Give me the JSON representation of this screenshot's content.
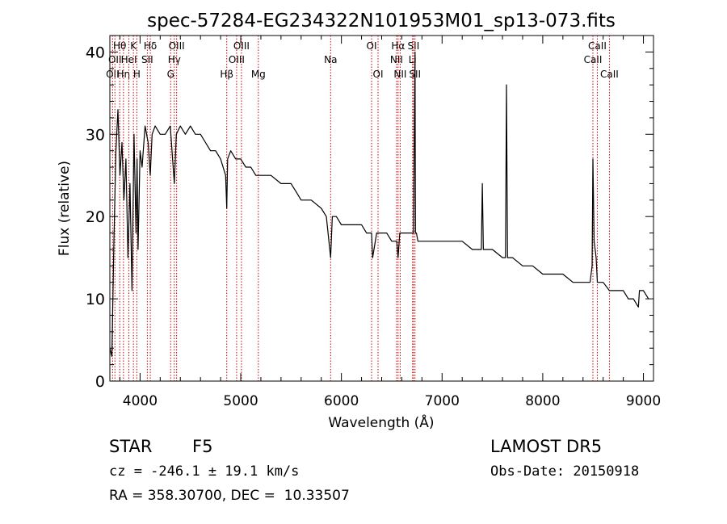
{
  "chart_data": {
    "type": "line",
    "title": "spec-57284-EG234322N101953M01_sp13-073.fits",
    "xlabel": "Wavelength (Å)",
    "ylabel": "Flux (relative)",
    "xlim": [
      3700,
      9100
    ],
    "ylim": [
      0,
      42
    ],
    "xticks": [
      4000,
      5000,
      6000,
      7000,
      8000,
      9000
    ],
    "yticks": [
      0,
      10,
      20,
      30,
      40
    ],
    "grid": false,
    "line_color": "#000000",
    "marker_color": "#cc0000",
    "series": [
      {
        "x": [
          3700,
          3720,
          3740,
          3760,
          3780,
          3800,
          3820,
          3840,
          3860,
          3880,
          3900,
          3920,
          3940,
          3960,
          3970,
          3980,
          4000,
          4020,
          4050,
          4080,
          4101,
          4120,
          4150,
          4200,
          4250,
          4300,
          4340,
          4360,
          4400,
          4450,
          4500,
          4550,
          4600,
          4650,
          4700,
          4750,
          4800,
          4850,
          4861,
          4870,
          4900,
          4950,
          5000,
          5050,
          5100,
          5150,
          5200,
          5300,
          5400,
          5500,
          5550,
          5600,
          5700,
          5800,
          5850,
          5893,
          5910,
          5950,
          6000,
          6100,
          6200,
          6250,
          6300,
          6310,
          6350,
          6400,
          6450,
          6500,
          6550,
          6563,
          6580,
          6600,
          6650,
          6700,
          6716,
          6731,
          6735,
          6745,
          6760,
          6800,
          6900,
          7000,
          7100,
          7200,
          7300,
          7390,
          7400,
          7410,
          7500,
          7600,
          7630,
          7640,
          7650,
          7700,
          7800,
          7900,
          8000,
          8100,
          8200,
          8300,
          8400,
          8470,
          8490,
          8498,
          8510,
          8530,
          8542,
          8560,
          8600,
          8662,
          8700,
          8800,
          8850,
          8900,
          8950,
          8960,
          9000,
          9050
        ],
        "y": [
          4,
          3,
          17,
          28,
          33,
          25,
          29,
          22,
          27,
          15,
          24,
          11,
          30,
          18,
          27,
          16,
          28,
          26,
          31,
          29,
          25,
          30,
          31,
          30,
          30,
          31,
          24,
          30,
          31,
          30,
          31,
          30,
          30,
          29,
          28,
          28,
          27,
          25,
          21,
          27,
          28,
          27,
          27,
          26,
          26,
          25,
          25,
          25,
          24,
          24,
          23,
          22,
          22,
          21,
          20,
          15,
          20,
          20,
          19,
          19,
          19,
          18,
          18,
          15,
          18,
          18,
          18,
          17,
          17,
          15,
          18,
          18,
          18,
          18,
          18,
          40,
          18,
          18,
          17,
          17,
          17,
          17,
          17,
          17,
          16,
          16,
          24,
          16,
          16,
          15,
          15,
          36,
          15,
          15,
          14,
          14,
          13,
          13,
          13,
          12,
          12,
          12,
          14,
          27,
          17,
          15,
          12,
          12,
          12,
          11,
          11,
          11,
          10,
          10,
          9,
          11,
          11,
          10
        ]
      }
    ],
    "lines": [
      {
        "wl": 3727,
        "top": "",
        "mid": "",
        "bot": "OII"
      },
      {
        "wl": 3750,
        "top": "",
        "mid": "OII",
        "bot": ""
      },
      {
        "wl": 3798,
        "top": "Hθ",
        "mid": "",
        "bot": ""
      },
      {
        "wl": 3835,
        "top": "",
        "mid": "",
        "bot": "Hη"
      },
      {
        "wl": 3889,
        "top": "",
        "mid": "HeI",
        "bot": ""
      },
      {
        "wl": 3934,
        "top": "K",
        "mid": "",
        "bot": ""
      },
      {
        "wl": 3968,
        "top": "",
        "mid": "",
        "bot": "H"
      },
      {
        "wl": 4072,
        "top": "",
        "mid": "SII",
        "bot": ""
      },
      {
        "wl": 4102,
        "top": "Hδ",
        "mid": "",
        "bot": ""
      },
      {
        "wl": 4304,
        "top": "",
        "mid": "",
        "bot": "G"
      },
      {
        "wl": 4340,
        "top": "",
        "mid": "Hγ",
        "bot": ""
      },
      {
        "wl": 4363,
        "top": "OIII",
        "mid": "",
        "bot": ""
      },
      {
        "wl": 4861,
        "top": "",
        "mid": "",
        "bot": "Hβ"
      },
      {
        "wl": 4959,
        "top": "",
        "mid": "OIII",
        "bot": ""
      },
      {
        "wl": 5007,
        "top": "OIII",
        "mid": "",
        "bot": ""
      },
      {
        "wl": 5175,
        "top": "",
        "mid": "",
        "bot": "Mg"
      },
      {
        "wl": 5893,
        "top": "",
        "mid": "Na",
        "bot": ""
      },
      {
        "wl": 6300,
        "top": "OI",
        "mid": "",
        "bot": ""
      },
      {
        "wl": 6364,
        "top": "",
        "mid": "",
        "bot": "OI"
      },
      {
        "wl": 6548,
        "top": "",
        "mid": "NII",
        "bot": ""
      },
      {
        "wl": 6563,
        "top": "Hα",
        "mid": "",
        "bot": ""
      },
      {
        "wl": 6584,
        "top": "",
        "mid": "",
        "bot": "NII"
      },
      {
        "wl": 6707,
        "top": "",
        "mid": "Li",
        "bot": ""
      },
      {
        "wl": 6716,
        "top": "SII",
        "mid": "",
        "bot": ""
      },
      {
        "wl": 6731,
        "top": "",
        "mid": "",
        "bot": "SII"
      },
      {
        "wl": 8498,
        "top": "",
        "mid": "CaII",
        "bot": ""
      },
      {
        "wl": 8542,
        "top": "CaII",
        "mid": "",
        "bot": ""
      },
      {
        "wl": 8662,
        "top": "",
        "mid": "",
        "bot": "CaII"
      }
    ]
  },
  "info": {
    "class": "STAR",
    "subclass": "F5",
    "survey": "LAMOST DR5",
    "cz": "cz = -246.1 ± 19.1 km/s",
    "obs_date": "Obs-Date: 20150918",
    "coords": "RA = 358.30700, DEC =  10.33507"
  }
}
